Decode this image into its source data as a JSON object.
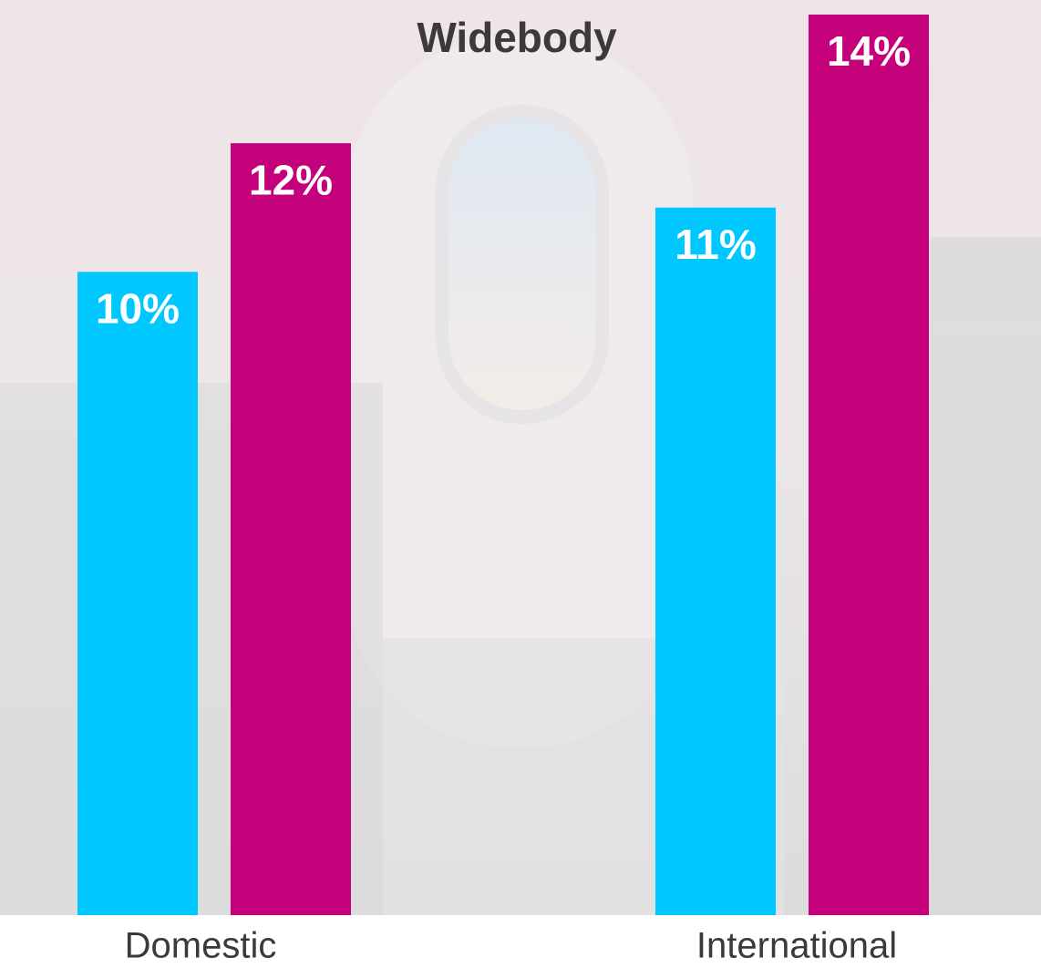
{
  "chart_data": {
    "type": "bar",
    "title": "Widebody",
    "categories": [
      "Domestic",
      "International"
    ],
    "series": [
      {
        "color": "#00c8ff",
        "values": [
          10,
          11
        ],
        "value_labels": [
          "10%",
          "11%"
        ]
      },
      {
        "color": "#c4007a",
        "values": [
          12,
          14
        ],
        "value_labels": [
          "12%",
          "14%"
        ]
      }
    ],
    "ylim": [
      0,
      14
    ]
  }
}
